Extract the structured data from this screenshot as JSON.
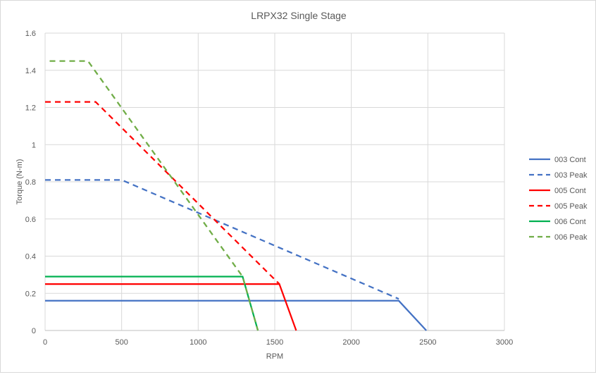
{
  "chart_data": {
    "type": "line",
    "title": "LRPX32 Single Stage",
    "xlabel": "RPM",
    "ylabel": "Torque (N-m)",
    "xlim": [
      0,
      3000
    ],
    "ylim": [
      0,
      1.6
    ],
    "xticks": [
      0,
      500,
      1000,
      1500,
      2000,
      2500,
      3000
    ],
    "yticks": [
      0,
      0.2,
      0.4,
      0.6,
      0.8,
      1,
      1.2,
      1.4,
      1.6
    ],
    "xtick_labels": [
      "0",
      "500",
      "1000",
      "1500",
      "2000",
      "2500",
      "3000"
    ],
    "ytick_labels": [
      "0",
      "0.2",
      "0.4",
      "0.6",
      "0.8",
      "1",
      "1.2",
      "1.4",
      "1.6"
    ],
    "grid": true,
    "legend_position": "right",
    "series": [
      {
        "name": "003 Cont",
        "color": "#4472C4",
        "dash": false,
        "points": [
          [
            0,
            0.16
          ],
          [
            2310,
            0.16
          ],
          [
            2490,
            0
          ]
        ]
      },
      {
        "name": "003 Peak",
        "color": "#4472C4",
        "dash": true,
        "points": [
          [
            0,
            0.81
          ],
          [
            500,
            0.81
          ],
          [
            2310,
            0.17
          ]
        ]
      },
      {
        "name": "005 Cont",
        "color": "#FF0000",
        "dash": false,
        "points": [
          [
            0,
            0.25
          ],
          [
            1530,
            0.25
          ],
          [
            1640,
            0
          ]
        ]
      },
      {
        "name": "005 Peak",
        "color": "#FF0000",
        "dash": true,
        "points": [
          [
            0,
            1.23
          ],
          [
            330,
            1.23
          ],
          [
            1530,
            0.25
          ]
        ]
      },
      {
        "name": "006 Cont",
        "color": "#00B050",
        "dash": false,
        "points": [
          [
            0,
            0.29
          ],
          [
            1290,
            0.29
          ],
          [
            1390,
            0
          ]
        ]
      },
      {
        "name": "006 Peak",
        "color": "#70AD47",
        "dash": true,
        "points": [
          [
            30,
            1.45
          ],
          [
            280,
            1.45
          ],
          [
            1290,
            0.29
          ],
          [
            1390,
            0
          ]
        ]
      }
    ]
  }
}
